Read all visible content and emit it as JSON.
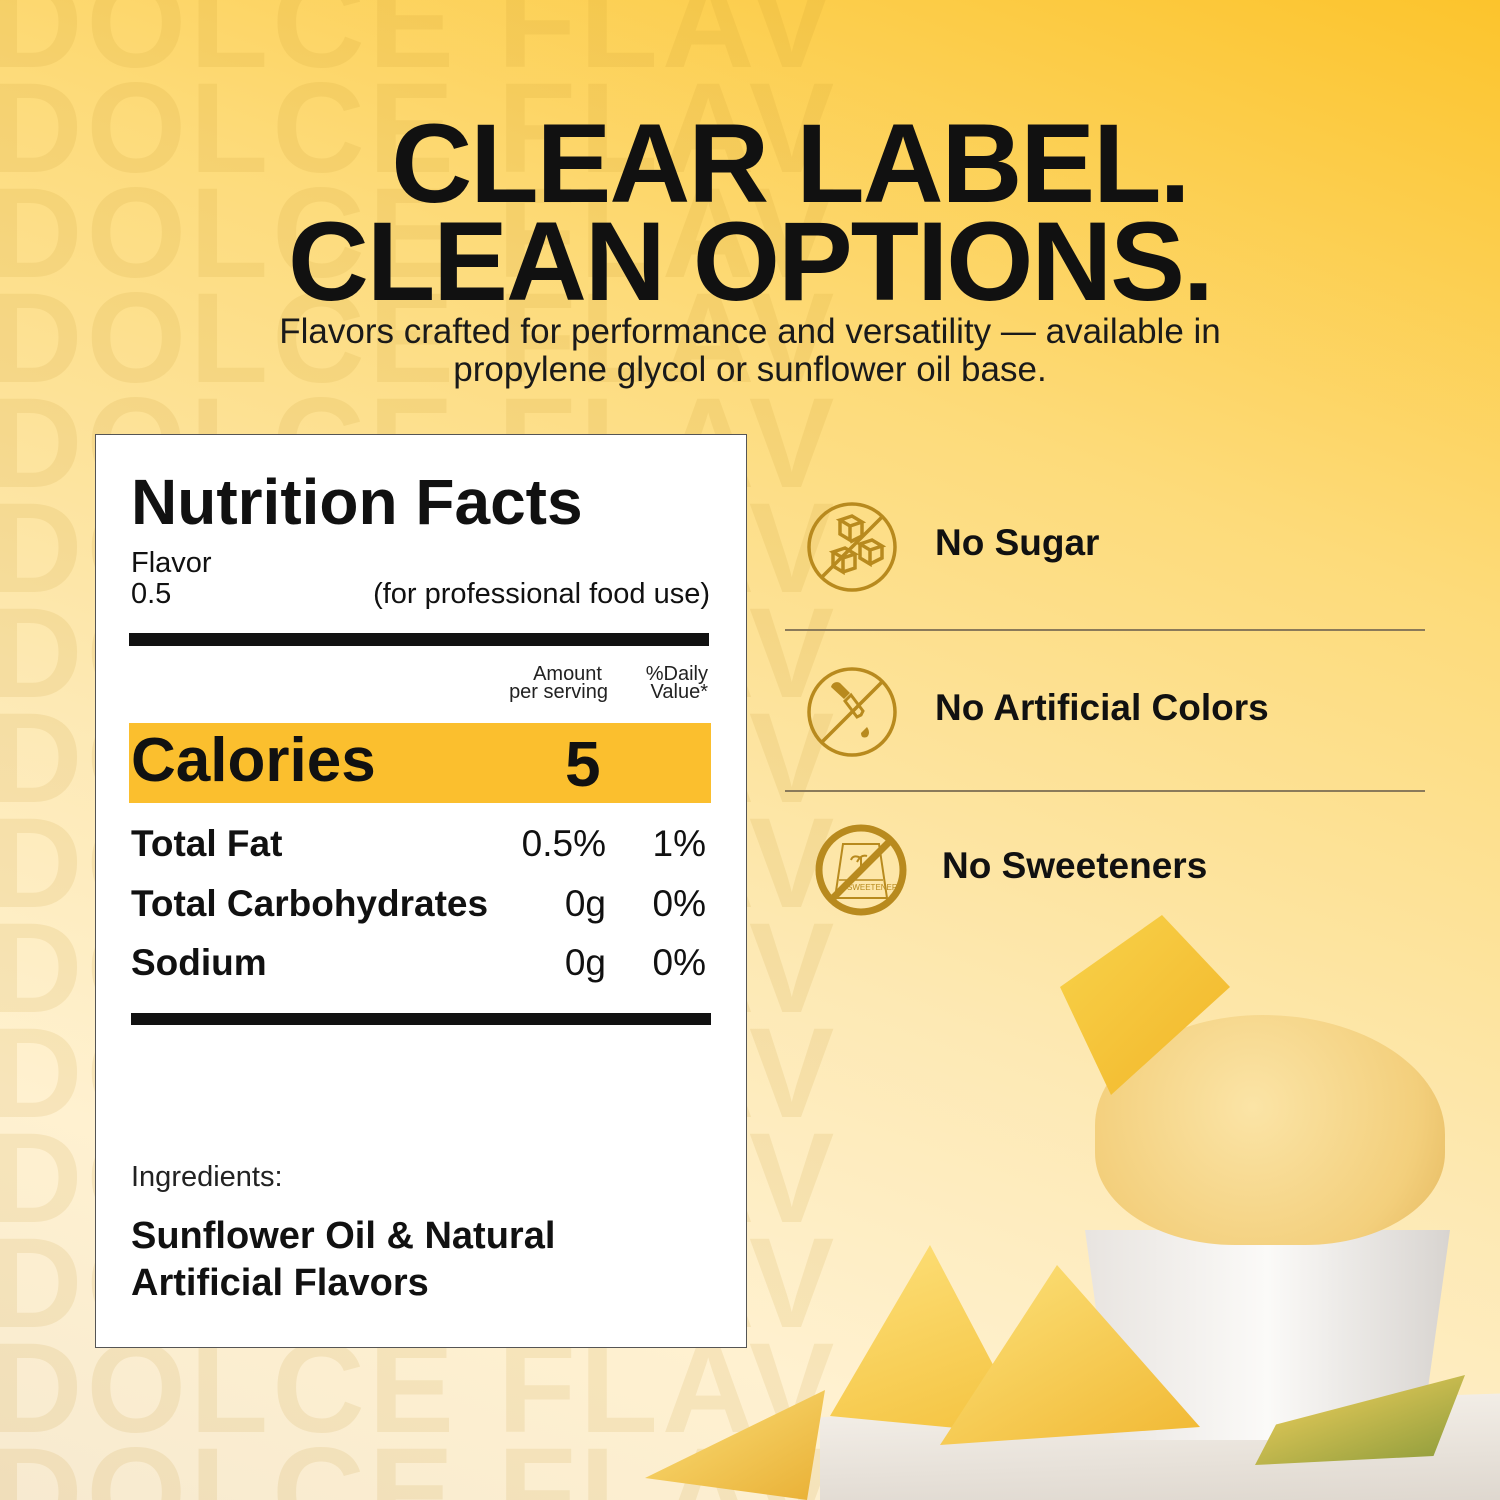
{
  "watermark": "DOLCE FLAV",
  "headline": {
    "line1": "CLEAR LABEL.",
    "line2": "CLEAN OPTIONS."
  },
  "subtitle": {
    "line1": "Flavors crafted for performance and versatility — available in",
    "line2": "propylene glycol or sunflower oil base."
  },
  "nutrition": {
    "title": "Nutrition Facts",
    "flavor_label": "Flavor",
    "flavor_value": "0.5",
    "use_note": "(for professional food use)",
    "col_amount_1": "Amount",
    "col_amount_2": "per serving",
    "col_dv_1": "%Daily",
    "col_dv_2": "Value*",
    "calories_label": "Calories",
    "calories_value": "5",
    "rows": [
      {
        "label": "Total Fat",
        "amount": "0.5%",
        "dv": "1%"
      },
      {
        "label": "Total Carbohydrates",
        "amount": "0g",
        "dv": "0%"
      },
      {
        "label": "Sodium",
        "amount": "0g",
        "dv": "0%"
      }
    ],
    "ingredients_label": "Ingredients:",
    "ingredients_line1": "Sunflower Oil & Natural",
    "ingredients_line2": "Artificial Flavors"
  },
  "features": [
    {
      "label": "No Sugar",
      "icon": "no-sugar-cubes-icon"
    },
    {
      "label": "No Artificial Colors",
      "icon": "no-dropper-icon"
    },
    {
      "label": "No Sweeteners",
      "icon": "no-sweetener-bag-icon",
      "icon_text": "SWEETENER"
    }
  ],
  "colors": {
    "accent": "#fbbf2e",
    "icon_gold": "#b88a1e",
    "text": "#111111"
  }
}
